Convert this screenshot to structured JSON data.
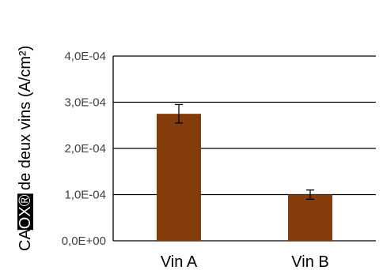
{
  "chart_data": {
    "type": "bar",
    "categories": [
      "Vin A",
      "Vin B"
    ],
    "values": [
      0.000275,
      0.0001
    ],
    "errors": [
      2e-05,
      1e-05
    ],
    "ylabel_prefix": "CA",
    "ylabel_box": "OX®",
    "ylabel_suffix": " de deux vins (A/cm²)",
    "ylim": [
      0,
      0.0004
    ],
    "yticks": [
      0,
      0.0001,
      0.0002,
      0.0003,
      0.0004
    ],
    "ytick_labels": [
      "0,0E+00",
      "1,0E-04",
      "2,0E-04",
      "3,0E-04",
      "4,0E-04"
    ],
    "grid": true,
    "legend": "none",
    "bar_color": "#843C0C",
    "ylabel_box_color": "#000000",
    "ylabel_box_text_color": "#ffffff"
  }
}
